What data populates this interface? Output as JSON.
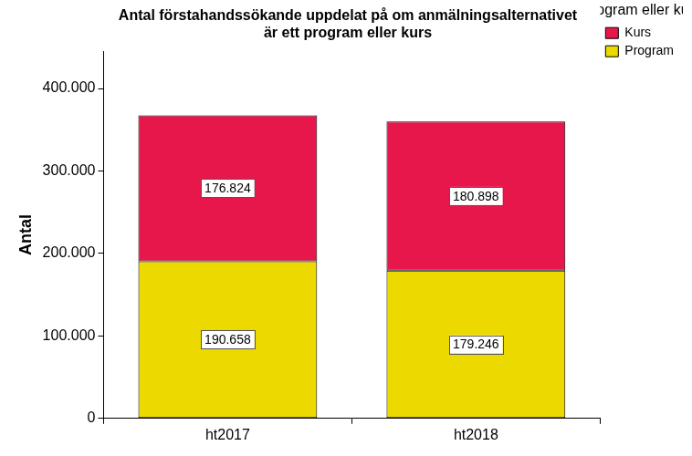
{
  "chart_data": {
    "type": "bar",
    "title": [
      "Antal förstahandssökande uppdelat på om anmälningsalternativet",
      "är ett program eller kurs"
    ],
    "y_label": "Antal",
    "categories": [
      "ht2017",
      "ht2018"
    ],
    "series": [
      {
        "name": "Program",
        "color": "#ecd900",
        "values": [
          190658,
          179246
        ],
        "value_labels": [
          "190.658",
          "179.246"
        ]
      },
      {
        "name": "Kurs",
        "color": "#e8174b",
        "values": [
          176824,
          180898
        ],
        "value_labels": [
          "176.824",
          "180.898"
        ]
      }
    ],
    "stacked": true,
    "data_labels": true,
    "legend": "right",
    "legend_title": "Program eller kurs",
    "grid": false,
    "ylim": [
      0,
      445000
    ],
    "yticks": [
      0,
      {
        "value": 100000,
        "label": "100.000"
      },
      {
        "value": 200000,
        "label": "200.000"
      },
      {
        "value": 300000,
        "label": "300.000"
      },
      {
        "value": 400000,
        "label": "400.000"
      }
    ]
  }
}
